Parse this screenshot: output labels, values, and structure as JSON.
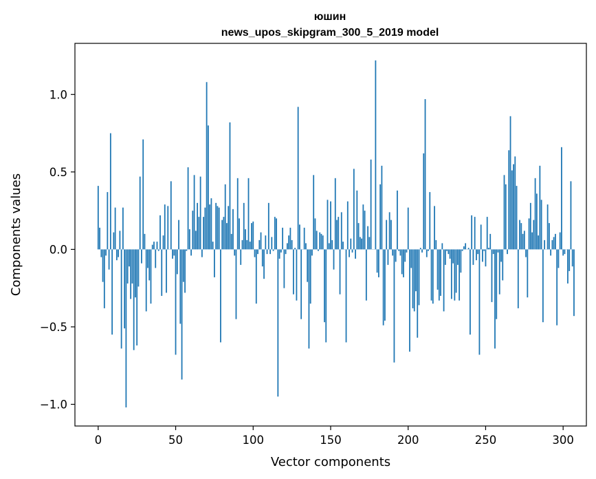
{
  "chart_data": {
    "type": "bar",
    "title": "юшин",
    "subtitle": "news_upos_skipgram_300_5_2019 model",
    "xlabel": "Vector components",
    "ylabel": "Components values",
    "xlim": [
      -15,
      315
    ],
    "ylim": [
      -1.14,
      1.33
    ],
    "x_ticks": [
      0,
      50,
      100,
      150,
      200,
      250,
      300
    ],
    "x_tick_labels": [
      "0",
      "50",
      "100",
      "150",
      "200",
      "250",
      "300"
    ],
    "y_ticks": [
      -1.0,
      -0.5,
      0.0,
      0.5,
      1.0
    ],
    "y_tick_labels": [
      "−1.0",
      "−0.5",
      "0.0",
      "0.5",
      "1.0"
    ],
    "bar_color": "#1f77b4",
    "values": [
      0.41,
      0.14,
      -0.05,
      -0.21,
      -0.38,
      -0.04,
      0.37,
      -0.13,
      0.75,
      -0.55,
      0.11,
      0.27,
      -0.07,
      -0.05,
      0.12,
      -0.64,
      0.27,
      -0.51,
      -1.02,
      -0.22,
      -0.11,
      -0.32,
      -0.22,
      -0.65,
      -0.31,
      -0.62,
      -0.24,
      0.47,
      -0.09,
      0.71,
      0.1,
      -0.4,
      -0.12,
      -0.2,
      -0.35,
      0.03,
      0.05,
      -0.12,
      0.05,
      -0.01,
      0.22,
      -0.3,
      0.09,
      0.29,
      -0.28,
      0.28,
      0.0,
      0.44,
      -0.06,
      -0.04,
      -0.68,
      -0.16,
      0.19,
      -0.48,
      -0.84,
      -0.21,
      -0.28,
      -0.01,
      0.53,
      0.13,
      -0.04,
      0.25,
      0.48,
      0.12,
      0.3,
      0.21,
      0.47,
      -0.05,
      0.21,
      0.27,
      1.08,
      0.8,
      0.29,
      0.33,
      0.05,
      -0.18,
      0.3,
      0.28,
      0.27,
      -0.6,
      0.19,
      0.21,
      0.42,
      0.17,
      0.28,
      0.82,
      0.1,
      0.26,
      -0.04,
      -0.45,
      0.46,
      0.2,
      -0.1,
      0.06,
      0.3,
      0.13,
      0.06,
      0.46,
      0.05,
      0.17,
      0.18,
      -0.05,
      -0.35,
      -0.03,
      0.06,
      0.11,
      -0.11,
      -0.19,
      0.09,
      -0.03,
      0.3,
      -0.03,
      0.08,
      -0.01,
      0.21,
      0.2,
      -0.95,
      -0.06,
      -0.02,
      0.14,
      -0.25,
      -0.03,
      0.04,
      0.09,
      0.14,
      0.06,
      -0.29,
      0.01,
      -0.33,
      0.92,
      0.16,
      -0.45,
      0.0,
      0.14,
      0.04,
      -0.21,
      -0.64,
      -0.35,
      -0.04,
      0.48,
      0.2,
      0.12,
      -0.01,
      0.11,
      0.1,
      0.09,
      -0.47,
      -0.6,
      0.32,
      0.04,
      0.31,
      0.06,
      -0.13,
      0.46,
      0.19,
      0.21,
      -0.29,
      0.24,
      0.05,
      0.0,
      -0.6,
      0.31,
      -0.05,
      0.07,
      -0.02,
      0.52,
      -0.06,
      0.38,
      0.17,
      0.08,
      0.07,
      0.29,
      0.25,
      -0.33,
      0.15,
      0.08,
      0.58,
      0.0,
      0.0,
      1.22,
      -0.15,
      -0.18,
      0.42,
      0.54,
      -0.49,
      -0.46,
      0.19,
      -0.1,
      0.24,
      0.19,
      -0.04,
      -0.73,
      -0.08,
      0.38,
      -0.01,
      -0.04,
      -0.16,
      -0.18,
      -0.08,
      -0.02,
      0.27,
      -0.66,
      -0.12,
      -0.38,
      -0.4,
      -0.27,
      -0.57,
      -0.36,
      0.01,
      -0.02,
      0.62,
      0.97,
      -0.05,
      -0.01,
      0.37,
      -0.33,
      -0.35,
      0.28,
      0.06,
      -0.26,
      -0.33,
      -0.3,
      0.04,
      -0.4,
      -0.1,
      -0.01,
      -0.03,
      -0.06,
      -0.32,
      -0.09,
      -0.33,
      -0.28,
      -0.1,
      -0.33,
      -0.15,
      -0.01,
      0.02,
      0.04,
      0.0,
      0.01,
      -0.55,
      0.22,
      -0.1,
      0.21,
      -0.07,
      -0.03,
      -0.68,
      0.16,
      -0.08,
      -0.01,
      -0.11,
      0.21,
      0.01,
      0.1,
      -0.34,
      -0.03,
      -0.64,
      -0.45,
      -0.02,
      -0.29,
      -0.08,
      -0.2,
      0.48,
      0.42,
      -0.03,
      0.64,
      0.86,
      0.51,
      0.55,
      0.6,
      0.41,
      -0.38,
      0.19,
      0.17,
      0.1,
      0.12,
      -0.05,
      -0.31,
      0.2,
      0.3,
      0.11,
      0.19,
      0.46,
      0.36,
      0.09,
      0.54,
      0.32,
      -0.47,
      0.06,
      0.0,
      0.29,
      0.17,
      -0.04,
      0.06,
      0.08,
      0.1,
      -0.49,
      -0.12,
      0.11,
      0.66,
      -0.04,
      -0.03,
      0.0,
      -0.22,
      -0.14,
      0.44,
      -0.11,
      -0.43
    ]
  }
}
